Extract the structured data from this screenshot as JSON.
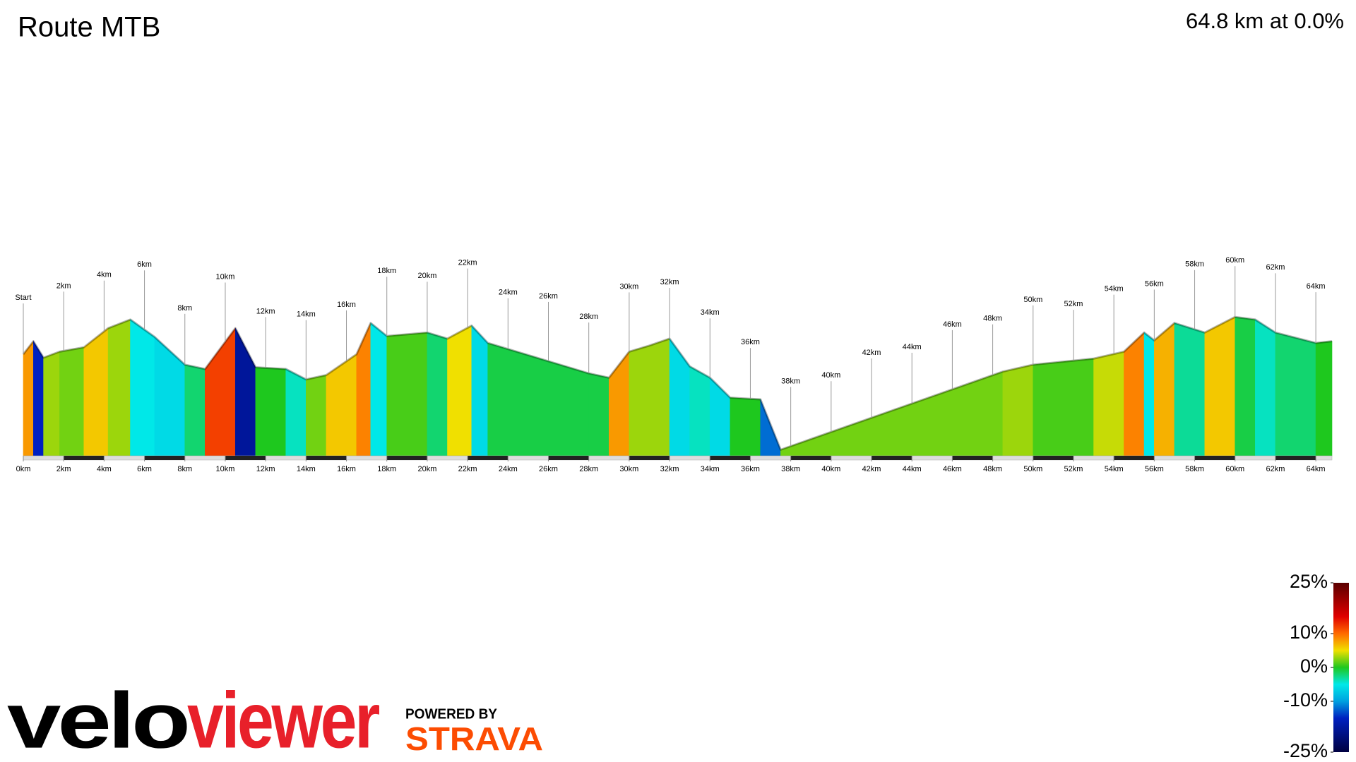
{
  "chart_data": {
    "type": "elevation-profile",
    "title": "Route MTB",
    "subtitle": "64.8 km at 0.0%",
    "x": [
      0,
      0.5,
      1.0,
      1.8,
      3.0,
      4.2,
      5.3,
      6.5,
      8.0,
      9.0,
      10.5,
      11.5,
      13.0,
      14.0,
      15.0,
      16.5,
      17.2,
      18.0,
      20.0,
      21.0,
      22.2,
      23.0,
      28.0,
      29.0,
      30.0,
      31.0,
      32.0,
      33.0,
      34.0,
      35.0,
      36.5,
      37.5,
      48.5,
      50.0,
      53.0,
      54.5,
      55.5,
      56.0,
      57.0,
      58.5,
      60.0,
      61.0,
      62.0,
      64.0,
      64.8
    ],
    "values": [
      117,
      132,
      113,
      120,
      125,
      147,
      157,
      137,
      105,
      100,
      147,
      102,
      100,
      88,
      93,
      117,
      153,
      138,
      142,
      135,
      150,
      130,
      95,
      90,
      120,
      127,
      135,
      103,
      90,
      67,
      65,
      7,
      97,
      105,
      112,
      120,
      142,
      133,
      153,
      142,
      160,
      157,
      142,
      130,
      132
    ],
    "grades": [
      8,
      -15,
      3,
      2,
      6,
      3,
      -5,
      -6,
      -2,
      12,
      -18,
      0,
      -4,
      2,
      6,
      9,
      -5,
      1,
      -2,
      5,
      -6,
      -1,
      -1,
      8,
      3,
      3,
      -6,
      -4,
      -6,
      0,
      -12,
      2,
      3,
      1,
      4,
      9,
      -5,
      7,
      -3,
      6,
      -1,
      -4,
      -2,
      0
    ],
    "xlim": [
      0,
      64.8
    ],
    "ylim": [
      0,
      200
    ],
    "xticks": [
      {
        "value": 0,
        "label": "0km"
      },
      {
        "value": 2,
        "label": "2km"
      },
      {
        "value": 4,
        "label": "4km"
      },
      {
        "value": 6,
        "label": "6km"
      },
      {
        "value": 8,
        "label": "8km"
      },
      {
        "value": 10,
        "label": "10km"
      },
      {
        "value": 12,
        "label": "12km"
      },
      {
        "value": 14,
        "label": "14km"
      },
      {
        "value": 16,
        "label": "16km"
      },
      {
        "value": 18,
        "label": "18km"
      },
      {
        "value": 20,
        "label": "20km"
      },
      {
        "value": 22,
        "label": "22km"
      },
      {
        "value": 24,
        "label": "24km"
      },
      {
        "value": 26,
        "label": "26km"
      },
      {
        "value": 28,
        "label": "28km"
      },
      {
        "value": 30,
        "label": "30km"
      },
      {
        "value": 32,
        "label": "32km"
      },
      {
        "value": 34,
        "label": "34km"
      },
      {
        "value": 36,
        "label": "36km"
      },
      {
        "value": 38,
        "label": "38km"
      },
      {
        "value": 40,
        "label": "40km"
      },
      {
        "value": 42,
        "label": "42km"
      },
      {
        "value": 44,
        "label": "44km"
      },
      {
        "value": 46,
        "label": "46km"
      },
      {
        "value": 48,
        "label": "48km"
      },
      {
        "value": 50,
        "label": "50km"
      },
      {
        "value": 52,
        "label": "52km"
      },
      {
        "value": 54,
        "label": "54km"
      },
      {
        "value": 56,
        "label": "56km"
      },
      {
        "value": 58,
        "label": "58km"
      },
      {
        "value": 60,
        "label": "60km"
      },
      {
        "value": 62,
        "label": "62km"
      },
      {
        "value": 64,
        "label": "64km"
      }
    ],
    "markers": [
      {
        "value": 0,
        "label": "Start"
      },
      {
        "value": 2,
        "label": "2km"
      },
      {
        "value": 4,
        "label": "4km"
      },
      {
        "value": 6,
        "label": "6km"
      },
      {
        "value": 8,
        "label": "8km"
      },
      {
        "value": 10,
        "label": "10km"
      },
      {
        "value": 12,
        "label": "12km"
      },
      {
        "value": 14,
        "label": "14km"
      },
      {
        "value": 16,
        "label": "16km"
      },
      {
        "value": 18,
        "label": "18km"
      },
      {
        "value": 20,
        "label": "20km"
      },
      {
        "value": 22,
        "label": "22km"
      },
      {
        "value": 24,
        "label": "24km"
      },
      {
        "value": 26,
        "label": "26km"
      },
      {
        "value": 28,
        "label": "28km"
      },
      {
        "value": 30,
        "label": "30km"
      },
      {
        "value": 32,
        "label": "32km"
      },
      {
        "value": 34,
        "label": "34km"
      },
      {
        "value": 36,
        "label": "36km"
      },
      {
        "value": 38,
        "label": "38km"
      },
      {
        "value": 40,
        "label": "40km"
      },
      {
        "value": 42,
        "label": "42km"
      },
      {
        "value": 44,
        "label": "44km"
      },
      {
        "value": 46,
        "label": "46km"
      },
      {
        "value": 48,
        "label": "48km"
      },
      {
        "value": 50,
        "label": "50km"
      },
      {
        "value": 52,
        "label": "52km"
      },
      {
        "value": 54,
        "label": "54km"
      },
      {
        "value": 56,
        "label": "56km"
      },
      {
        "value": 58,
        "label": "58km"
      },
      {
        "value": 60,
        "label": "60km"
      },
      {
        "value": 62,
        "label": "62km"
      },
      {
        "value": 64,
        "label": "64km"
      }
    ],
    "clim": [
      -25,
      25
    ],
    "color_stops": [
      {
        "value": -25,
        "color": "#000040"
      },
      {
        "value": -15,
        "color": "#0020c0"
      },
      {
        "value": -10,
        "color": "#00a0e0"
      },
      {
        "value": -5,
        "color": "#00e8e8"
      },
      {
        "value": 0,
        "color": "#1ec81e"
      },
      {
        "value": 5,
        "color": "#f0e000"
      },
      {
        "value": 10,
        "color": "#ff6a00"
      },
      {
        "value": 15,
        "color": "#e00000"
      },
      {
        "value": 25,
        "color": "#5a0000"
      }
    ],
    "colorbar_ticks": [
      {
        "value": 25,
        "label": "25%"
      },
      {
        "value": 10,
        "label": "10%"
      },
      {
        "value": 0,
        "label": "0%"
      },
      {
        "value": -10,
        "label": "-10%"
      },
      {
        "value": -25,
        "label": "-25%"
      }
    ]
  },
  "branding": {
    "velo": "velo",
    "viewer": "viewer",
    "powered_by": "POWERED BY",
    "strava": "STRAVA"
  }
}
